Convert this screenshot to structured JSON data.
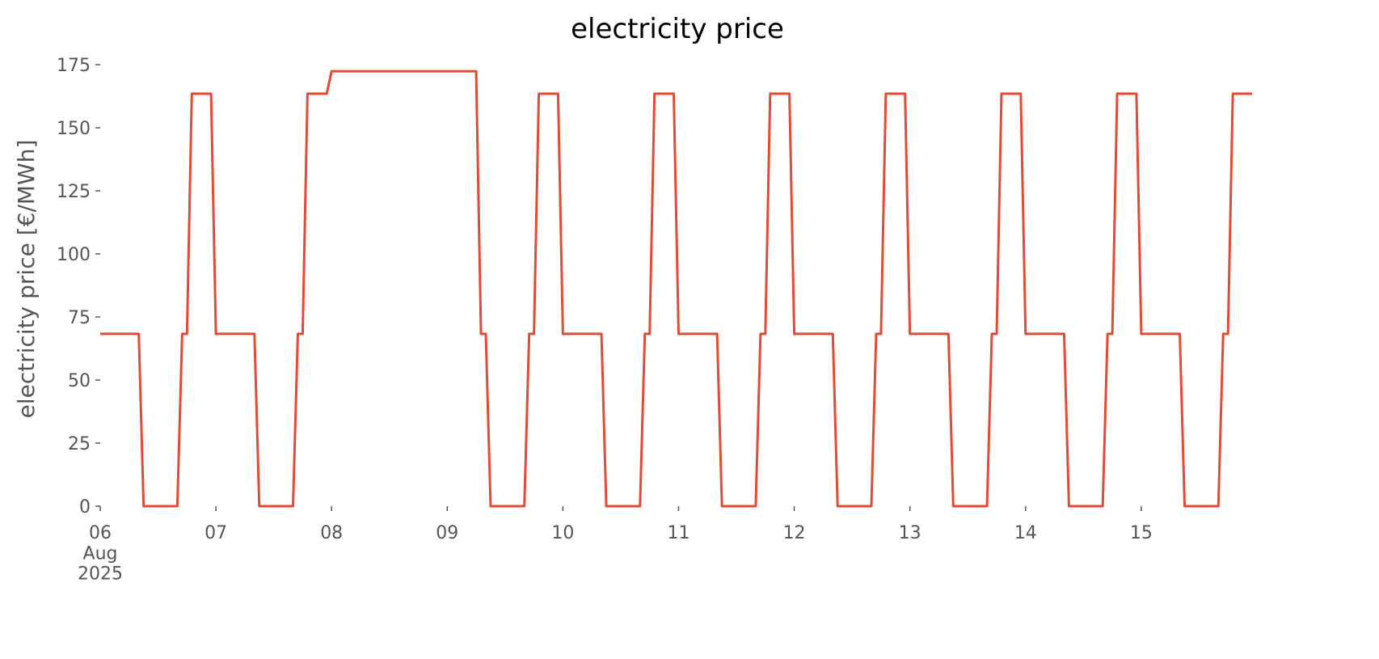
{
  "chart_data": {
    "type": "line",
    "title": "electricity price",
    "y_label": "electricity price [€/MWh]",
    "color": "#e24a33",
    "values": [
      68.3,
      68.3,
      68.3,
      68.3,
      68.3,
      68.3,
      68.3,
      68.3,
      68.3,
      0,
      0,
      0,
      0,
      0,
      0,
      0,
      0,
      68.3,
      68.3,
      163.5,
      163.5,
      163.5,
      163.5,
      163.5,
      68.3,
      68.3,
      68.3,
      68.3,
      68.3,
      68.3,
      68.3,
      68.3,
      68.3,
      0,
      0,
      0,
      0,
      0,
      0,
      0,
      0,
      68.3,
      68.3,
      163.5,
      163.5,
      163.5,
      163.5,
      163.5,
      172.4,
      172.4,
      172.4,
      172.4,
      172.4,
      172.4,
      172.4,
      172.4,
      172.4,
      172.4,
      172.4,
      172.4,
      172.4,
      172.4,
      172.4,
      172.4,
      172.4,
      172.4,
      172.4,
      172.4,
      172.4,
      172.4,
      172.4,
      172.4,
      172.4,
      172.4,
      172.4,
      172.4,
      172.4,
      172.4,
      172.4,
      68.3,
      68.3,
      0,
      0,
      0,
      0,
      0,
      0,
      0,
      0,
      68.3,
      68.3,
      163.5,
      163.5,
      163.5,
      163.5,
      163.5,
      68.3,
      68.3,
      68.3,
      68.3,
      68.3,
      68.3,
      68.3,
      68.3,
      68.3,
      0,
      0,
      0,
      0,
      0,
      0,
      0,
      0,
      68.3,
      68.3,
      163.5,
      163.5,
      163.5,
      163.5,
      163.5,
      68.3,
      68.3,
      68.3,
      68.3,
      68.3,
      68.3,
      68.3,
      68.3,
      68.3,
      0,
      0,
      0,
      0,
      0,
      0,
      0,
      0,
      68.3,
      68.3,
      163.5,
      163.5,
      163.5,
      163.5,
      163.5,
      68.3,
      68.3,
      68.3,
      68.3,
      68.3,
      68.3,
      68.3,
      68.3,
      68.3,
      0,
      0,
      0,
      0,
      0,
      0,
      0,
      0,
      68.3,
      68.3,
      163.5,
      163.5,
      163.5,
      163.5,
      163.5,
      68.3,
      68.3,
      68.3,
      68.3,
      68.3,
      68.3,
      68.3,
      68.3,
      68.3,
      0,
      0,
      0,
      0,
      0,
      0,
      0,
      0,
      68.3,
      68.3,
      163.5,
      163.5,
      163.5,
      163.5,
      163.5,
      68.3,
      68.3,
      68.3,
      68.3,
      68.3,
      68.3,
      68.3,
      68.3,
      68.3,
      0,
      0,
      0,
      0,
      0,
      0,
      0,
      0,
      68.3,
      68.3,
      163.5,
      163.5,
      163.5,
      163.5,
      163.5,
      68.3,
      68.3,
      68.3,
      68.3,
      68.3,
      68.3,
      68.3,
      68.3,
      68.3,
      0,
      0,
      0,
      0,
      0,
      0,
      0,
      0,
      68.3,
      68.3,
      163.5,
      163.5,
      163.5,
      163.5,
      163.5
    ],
    "xlim": [
      0,
      239
    ],
    "xticks": [
      {
        "value": 0,
        "label": "06\nAug\n2025"
      },
      {
        "value": 24,
        "label": "07"
      },
      {
        "value": 48,
        "label": "08"
      },
      {
        "value": 72,
        "label": "09"
      },
      {
        "value": 96,
        "label": "10"
      },
      {
        "value": 120,
        "label": "11"
      },
      {
        "value": 144,
        "label": "12"
      },
      {
        "value": 168,
        "label": "13"
      },
      {
        "value": 192,
        "label": "14"
      },
      {
        "value": 216,
        "label": "15"
      }
    ],
    "ylim": [
      0,
      175
    ],
    "yticks": [
      0,
      25,
      50,
      75,
      100,
      125,
      150,
      175
    ]
  }
}
